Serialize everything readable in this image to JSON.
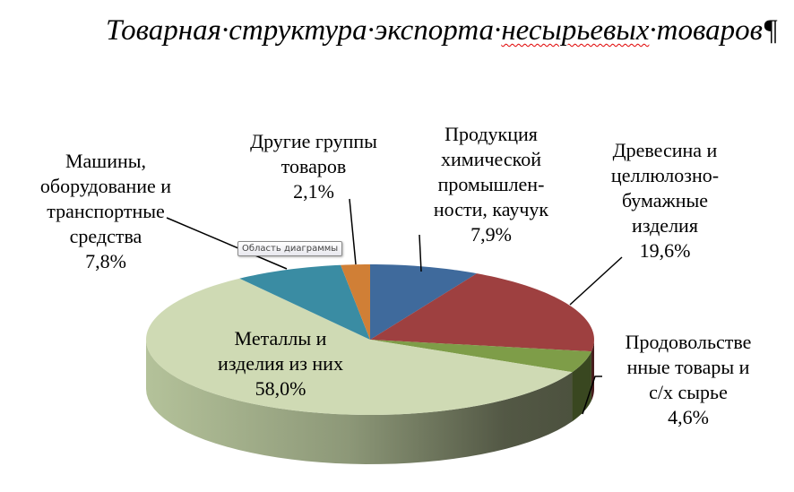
{
  "document": {
    "title_parts": [
      "Товарная·структура·экспорта·",
      "несырьевых",
      "·товаров",
      "¶"
    ]
  },
  "tooltip": "Область диаграммы",
  "chart_data": {
    "type": "pie",
    "style": "3d",
    "title": "Товарная структура экспорта несырьевых товаров",
    "legend": "none",
    "slices": [
      {
        "label": "Продукция химической промышлен-ности, каучук",
        "value": 7.9,
        "value_label": "7,9%",
        "color": "#3f6a9c"
      },
      {
        "label": "Древесина и целлюлозно-бумажные изделия",
        "value": 19.6,
        "value_label": "19,6%",
        "color": "#9e4040"
      },
      {
        "label": "Продовольстве нные товары и с/х сырье",
        "value": 4.6,
        "value_label": "4,6%",
        "color": "#7e9d48"
      },
      {
        "label": "Металлы и изделия из них",
        "value": 58.0,
        "value_label": "58,0%",
        "color": "#cfdab4"
      },
      {
        "label": "Машины, оборудование и транспортные средства",
        "value": 7.8,
        "value_label": "7,8%",
        "color": "#3a8ca3"
      },
      {
        "label": "Другие группы товаров",
        "value": 2.1,
        "value_label": "2,1%",
        "color": "#d07f36"
      }
    ],
    "label_lines": [
      "Продукция\nхимической\nпромышлен-\nности, каучук\n7,9%",
      "Древесина и\nцеллюлозно-\nбумажные\nизделия\n19,6%",
      "Продовольстве\nнные товары и\nс/х сырье\n4,6%",
      "Металлы и\nизделия из них\n58,0%",
      "Машины,\nоборудование и\nтранспортные\nсредства\n7,8%",
      "Другие группы\nтоваров\n2,1%"
    ]
  }
}
